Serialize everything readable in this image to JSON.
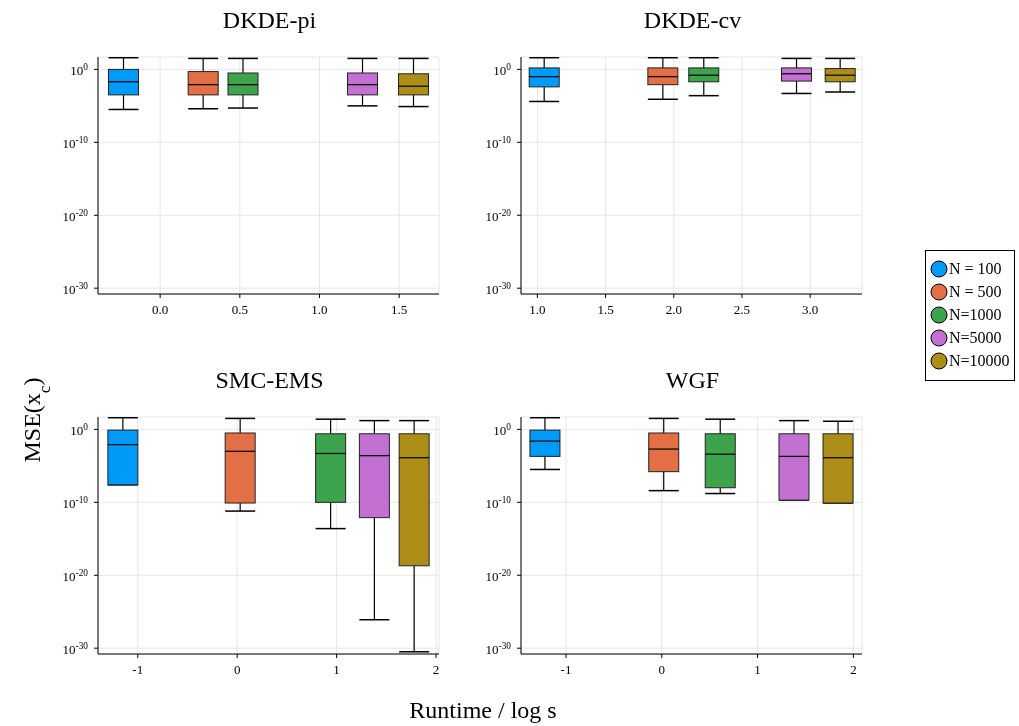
{
  "chart_data": [
    {
      "type": "box",
      "title": "DKDE-pi",
      "log": true,
      "grid": true,
      "legend": "right",
      "xlim": [
        -0.39,
        1.75
      ],
      "xticks": [
        {
          "value": 0,
          "label": "0.0"
        },
        {
          "value": 0.5,
          "label": "0.5"
        },
        {
          "value": 1,
          "label": "1.0"
        },
        {
          "value": 1.5,
          "label": "1.5"
        }
      ],
      "ylim": [
        1.6e-31,
        50
      ],
      "yticks": [
        {
          "value": 1e-30,
          "label": "10$^{-30}$"
        },
        {
          "value": 1e-20,
          "label": "10$^{-20}$"
        },
        {
          "value": 1e-10,
          "label": "10$^{-10}$"
        },
        {
          "value": 1,
          "label": "10$^{0}$"
        }
      ],
      "series": [
        {
          "name": "N = 100",
          "color": "#009af9",
          "x": [
            -0.23
          ],
          "boxes": [
            {
              "low": 3.2e-06,
              "q1": 0.00032,
              "median": 0.02,
              "q3": 1,
              "high": 40
            }
          ]
        },
        {
          "name": "N = 500",
          "color": "#e26f46",
          "x": [
            0.27
          ],
          "boxes": [
            {
              "low": 4e-06,
              "q1": 0.00032,
              "median": 0.008,
              "q3": 0.5,
              "high": 32
            }
          ]
        },
        {
          "name": "N=1000",
          "color": "#3da44d",
          "x": [
            0.52
          ],
          "boxes": [
            {
              "low": 5e-06,
              "q1": 0.00032,
              "median": 0.008,
              "q3": 0.32,
              "high": 32
            }
          ]
        },
        {
          "name": "N=5000",
          "color": "#c271d2",
          "x": [
            1.27
          ],
          "boxes": [
            {
              "low": 1e-05,
              "q1": 0.00032,
              "median": 0.008,
              "q3": 0.32,
              "high": 32
            }
          ]
        },
        {
          "name": "N=10000",
          "color": "#ac8d18",
          "x": [
            1.59
          ],
          "boxes": [
            {
              "low": 8e-06,
              "q1": 0.00032,
              "median": 0.005,
              "q3": 0.25,
              "high": 32
            }
          ]
        }
      ]
    },
    {
      "type": "box",
      "title": "DKDE-cv",
      "log": true,
      "grid": true,
      "xlim": [
        0.88,
        3.38
      ],
      "xticks": [
        {
          "value": 1,
          "label": "1.0"
        },
        {
          "value": 1.5,
          "label": "1.5"
        },
        {
          "value": 2,
          "label": "2.0"
        },
        {
          "value": 2.5,
          "label": "2.5"
        },
        {
          "value": 3,
          "label": "3.0"
        }
      ],
      "ylim": [
        1.6e-31,
        50
      ],
      "yticks": [
        {
          "value": 1e-30,
          "label": "10$^{-30}$"
        },
        {
          "value": 1e-20,
          "label": "10$^{-20}$"
        },
        {
          "value": 1e-10,
          "label": "10$^{-10}$"
        },
        {
          "value": 1,
          "label": "10$^{0}$"
        }
      ],
      "series": [
        {
          "color": "#009af9",
          "x": [
            1.05
          ],
          "boxes": [
            {
              "low": 4e-05,
              "q1": 0.004,
              "median": 0.1,
              "q3": 1.6,
              "high": 40
            }
          ]
        },
        {
          "color": "#e26f46",
          "x": [
            1.92
          ],
          "boxes": [
            {
              "low": 8e-05,
              "q1": 0.008,
              "median": 0.1,
              "q3": 1.6,
              "high": 40
            }
          ]
        },
        {
          "color": "#3da44d",
          "x": [
            2.22
          ],
          "boxes": [
            {
              "low": 0.00025,
              "q1": 0.02,
              "median": 0.16,
              "q3": 1.6,
              "high": 40
            }
          ]
        },
        {
          "color": "#c271d2",
          "x": [
            2.9
          ],
          "boxes": [
            {
              "low": 0.0005,
              "q1": 0.025,
              "median": 0.25,
              "q3": 1.6,
              "high": 32
            }
          ]
        },
        {
          "color": "#ac8d18",
          "x": [
            3.22
          ],
          "boxes": [
            {
              "low": 0.0008,
              "q1": 0.02,
              "median": 0.16,
              "q3": 1.3,
              "high": 32
            }
          ]
        }
      ]
    },
    {
      "type": "box",
      "title": "SMC-EMS",
      "xlabel": "Runtime / log s",
      "ylabel": "MSE(x$_{c}$)",
      "log": true,
      "grid": true,
      "xlim": [
        -1.4,
        2.03
      ],
      "xticks": [
        -1,
        0,
        1,
        2
      ],
      "ylim": [
        1.6e-31,
        50
      ],
      "yticks": [
        {
          "value": 1e-30,
          "label": "10$^{-30}$"
        },
        {
          "value": 1e-20,
          "label": "10$^{-20}$"
        },
        {
          "value": 1e-10,
          "label": "10$^{-10}$"
        },
        {
          "value": 1,
          "label": "10$^{0}$"
        }
      ],
      "series": [
        {
          "color": "#009af9",
          "x": [
            -1.15
          ],
          "boxes": [
            {
              "low": 2.5e-08,
              "q1": 2.5e-08,
              "median": 0.008,
              "q3": 0.8,
              "high": 40
            }
          ]
        },
        {
          "color": "#e26f46",
          "x": [
            0.03
          ],
          "boxes": [
            {
              "low": 6.3e-12,
              "q1": 8e-11,
              "median": 0.001,
              "q3": 0.32,
              "high": 32
            }
          ]
        },
        {
          "color": "#3da44d",
          "x": [
            0.94
          ],
          "boxes": [
            {
              "low": 2.5e-14,
              "q1": 1e-10,
              "median": 0.0005,
              "q3": 0.25,
              "high": 25
            }
          ]
        },
        {
          "color": "#c271d2",
          "x": [
            1.38
          ],
          "boxes": [
            {
              "low": 8e-27,
              "q1": 8e-13,
              "median": 0.00025,
              "q3": 0.25,
              "high": 16
            }
          ]
        },
        {
          "color": "#ac8d18",
          "x": [
            1.78
          ],
          "boxes": [
            {
              "low": 3.2e-31,
              "q1": 2e-19,
              "median": 0.00013,
              "q3": 0.25,
              "high": 16
            }
          ]
        }
      ]
    },
    {
      "type": "box",
      "title": "WGF",
      "log": true,
      "grid": true,
      "xlim": [
        -1.47,
        2.09
      ],
      "xticks": [
        -1,
        0,
        1,
        2
      ],
      "ylim": [
        1.6e-31,
        50
      ],
      "yticks": [
        {
          "value": 1e-30,
          "label": "10$^{-30}$"
        },
        {
          "value": 1e-20,
          "label": "10$^{-20}$"
        },
        {
          "value": 1e-10,
          "label": "10$^{-10}$"
        },
        {
          "value": 1,
          "label": "10$^{0}$"
        }
      ],
      "series": [
        {
          "color": "#009af9",
          "x": [
            -1.22
          ],
          "boxes": [
            {
              "low": 3.2e-06,
              "q1": 0.0002,
              "median": 0.025,
              "q3": 0.8,
              "high": 40
            }
          ]
        },
        {
          "color": "#e26f46",
          "x": [
            0.02
          ],
          "boxes": [
            {
              "low": 4e-09,
              "q1": 1.6e-06,
              "median": 0.002,
              "q3": 0.32,
              "high": 32
            }
          ]
        },
        {
          "color": "#3da44d",
          "x": [
            0.61
          ],
          "boxes": [
            {
              "low": 1.6e-09,
              "q1": 1e-08,
              "median": 0.0004,
              "q3": 0.25,
              "high": 25
            }
          ]
        },
        {
          "color": "#c271d2",
          "x": [
            1.38
          ],
          "boxes": [
            {
              "low": 2e-10,
              "q1": 2e-10,
              "median": 0.0002,
              "q3": 0.25,
              "high": 16
            }
          ]
        },
        {
          "color": "#ac8d18",
          "x": [
            1.84
          ],
          "boxes": [
            {
              "low": 8e-11,
              "q1": 8e-11,
              "median": 0.00013,
              "q3": 0.25,
              "high": 13
            }
          ]
        }
      ]
    }
  ]
}
